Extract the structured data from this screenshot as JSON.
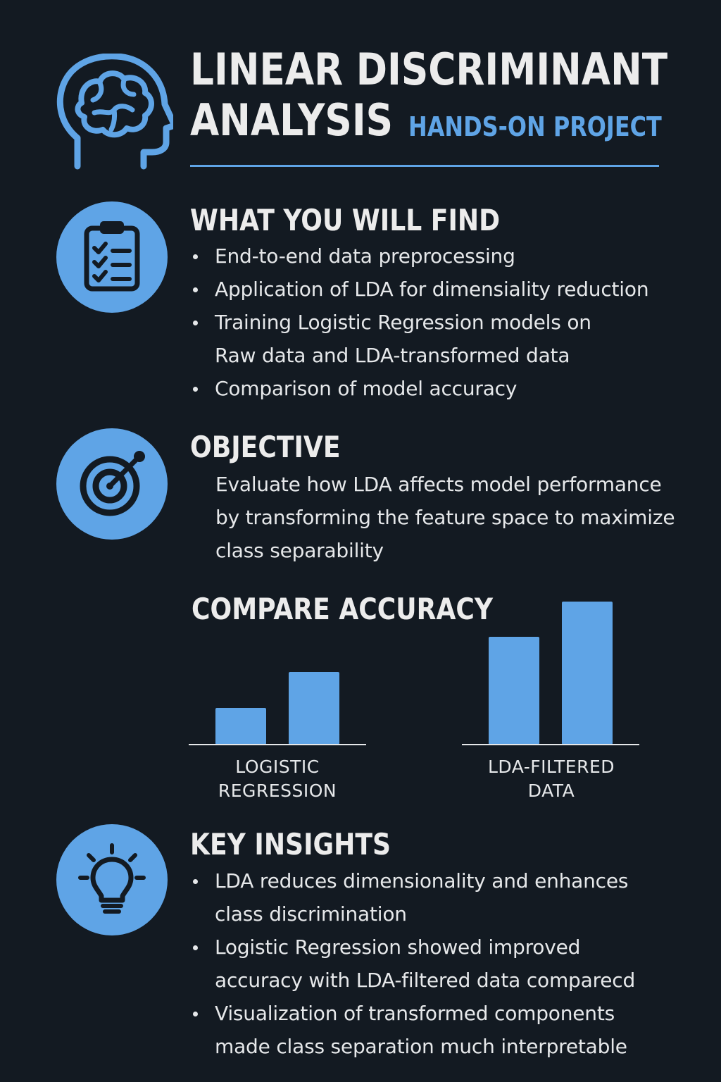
{
  "header": {
    "title_line1": "LINEAR DISCRIMINANT",
    "title_line2": "ANALYSIS",
    "subtitle": "HANDS-ON PROJECT"
  },
  "sections": {
    "find": {
      "heading": "WHAT YOU WILL FIND",
      "items": [
        "End-to-end data preprocessing",
        "Application of LDA for dimensiality reduction",
        "Training Logistic Regression models on Raw data and LDA-transformed data",
        "Comparison of model accuracy"
      ]
    },
    "objective": {
      "heading": "OBJECTIVE",
      "text": "Evaluate how LDA affects model performance by transforming the feature space to maximize class separability"
    },
    "compare": {
      "heading": "COMPARE ACCURACY",
      "group1_label": "LOGISTIC REGRESSION",
      "group2_label": "LDA-FILTERED DATA"
    },
    "insights": {
      "heading": "KEY INSIGHTS",
      "items": [
        "LDA reduces dimensionality and enhances class discrimination",
        "Logistic Regression showed improved accuracy with LDA-filtered data comparecd",
        "Visualization of transformed components made class separation much interpretable"
      ]
    }
  },
  "icons": {
    "header": "brain-head-icon",
    "find": "clipboard-checklist-icon",
    "objective": "target-icon",
    "insights": "lightbulb-icon"
  },
  "colors": {
    "background": "#131a22",
    "accent": "#5fa4e6",
    "text": "#e6e8ea"
  },
  "chart_data": {
    "type": "bar",
    "groups": [
      "LOGISTIC REGRESSION",
      "LDA-FILTERED DATA"
    ],
    "bars_per_group": 2,
    "relative_heights": [
      [
        0.25,
        0.5
      ],
      [
        0.75,
        1.0
      ]
    ]
  }
}
